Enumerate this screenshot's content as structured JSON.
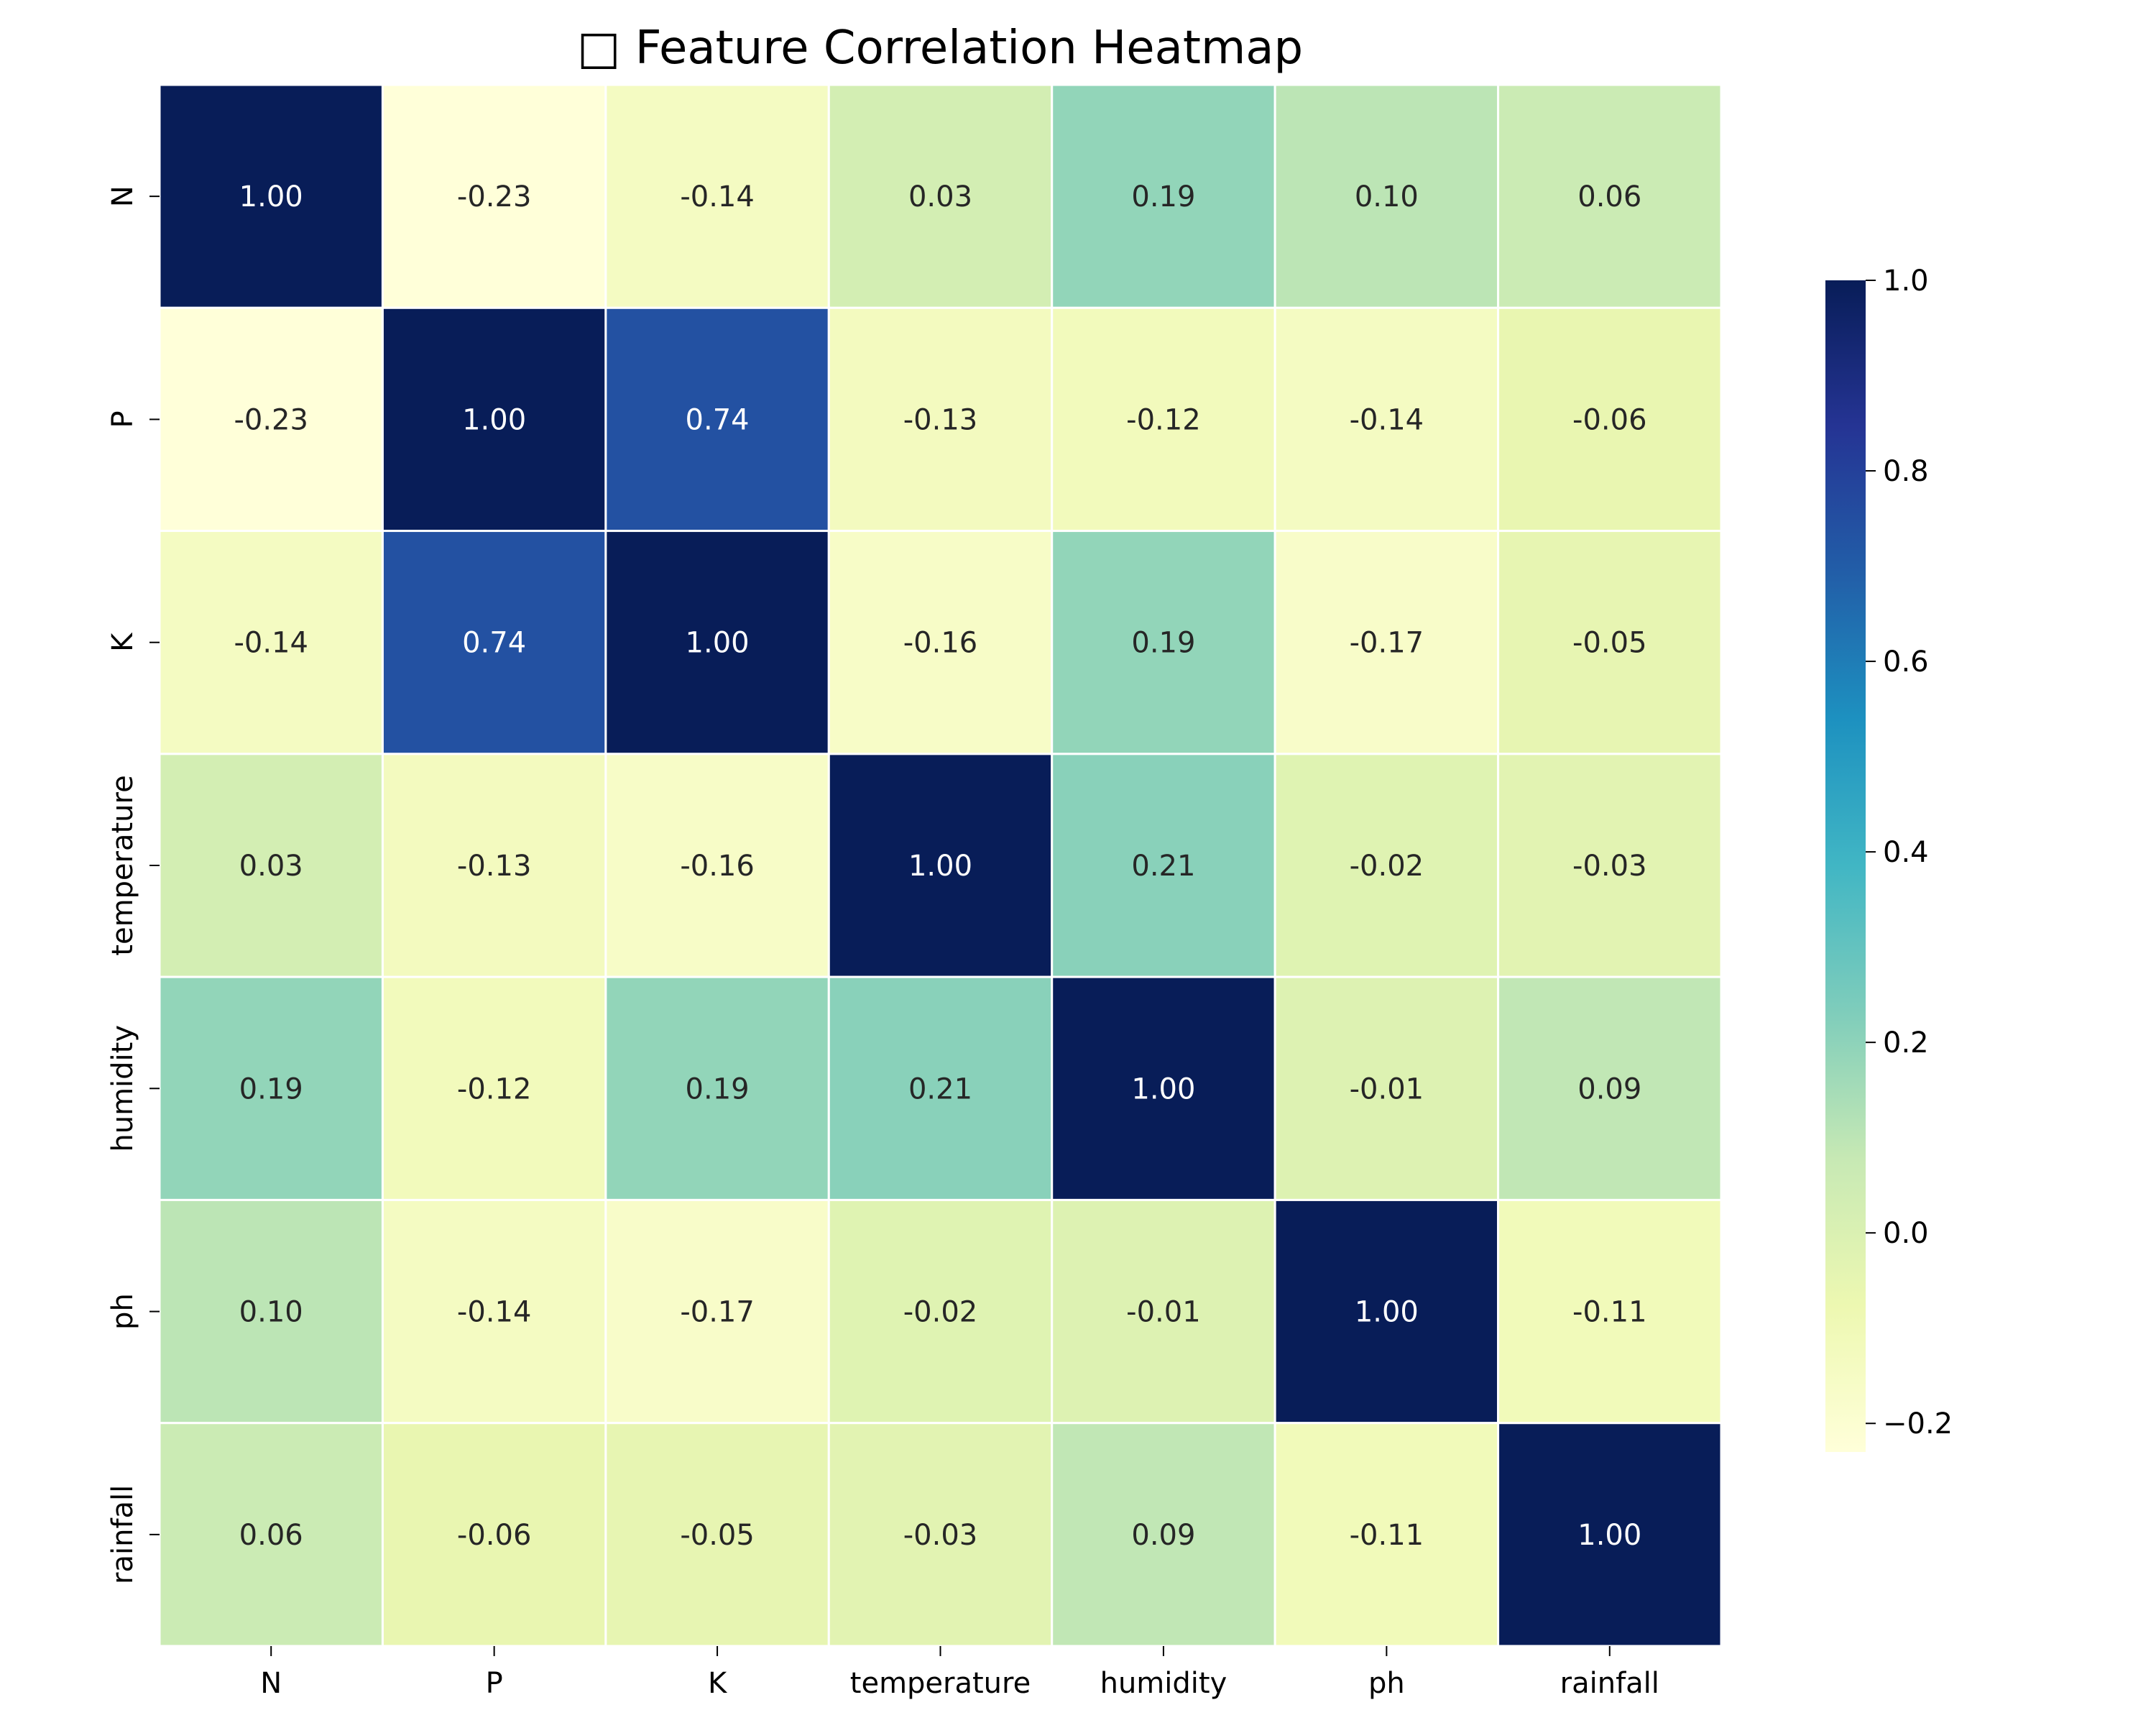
{
  "chart_data": {
    "type": "heatmap",
    "title": "□ Feature Correlation Heatmap",
    "x_categories": [
      "N",
      "P",
      "K",
      "temperature",
      "humidity",
      "ph",
      "rainfall"
    ],
    "y_categories": [
      "N",
      "P",
      "K",
      "temperature",
      "humidity",
      "ph",
      "rainfall"
    ],
    "values": [
      [
        1.0,
        -0.23,
        -0.14,
        0.03,
        0.19,
        0.1,
        0.06
      ],
      [
        -0.23,
        1.0,
        0.74,
        -0.13,
        -0.12,
        -0.14,
        -0.06
      ],
      [
        -0.14,
        0.74,
        1.0,
        -0.16,
        0.19,
        -0.17,
        -0.05
      ],
      [
        0.03,
        -0.13,
        -0.16,
        1.0,
        0.21,
        -0.02,
        -0.03
      ],
      [
        0.19,
        -0.12,
        0.19,
        0.21,
        1.0,
        -0.01,
        0.09
      ],
      [
        0.1,
        -0.14,
        -0.17,
        -0.02,
        -0.01,
        1.0,
        -0.11
      ],
      [
        0.06,
        -0.06,
        -0.05,
        -0.03,
        0.09,
        -0.11,
        1.0
      ]
    ],
    "value_range": [
      -0.23,
      1.0
    ],
    "colormap": "YlGnBu",
    "colormap_stops": [
      "#ffffd9",
      "#edf8b1",
      "#c7e9b4",
      "#7fcdbb",
      "#41b6c4",
      "#1d91c0",
      "#225ea8",
      "#253494",
      "#081d58"
    ],
    "colorbar": {
      "ticks": [
        1.0,
        0.8,
        0.6,
        0.4,
        0.2,
        0.0,
        -0.2
      ],
      "tick_labels": [
        "1.0",
        "0.8",
        "0.6",
        "0.4",
        "0.2",
        "0.0",
        "−0.2"
      ]
    },
    "annotation_format": "0.00",
    "grid_line_color": "#ffffff",
    "text_color_dark": "#262626",
    "text_color_light": "#ffffff"
  }
}
